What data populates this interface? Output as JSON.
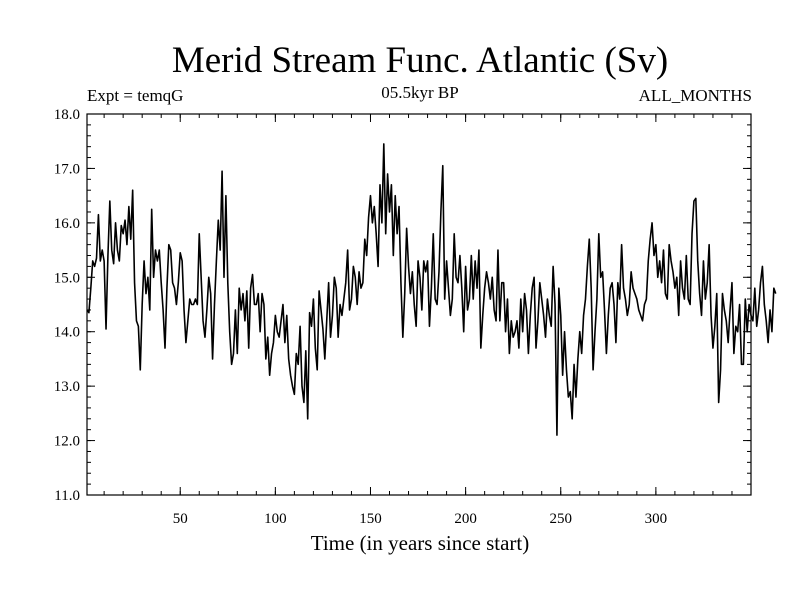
{
  "chart_data": {
    "type": "line",
    "title": "Merid Stream Func. Atlantic (Sv)",
    "subtitle_left": "Expt = temqG",
    "subtitle_center": "05.5kyr BP",
    "subtitle_right": "ALL_MONTHS",
    "xlabel": "Time (in years since start)",
    "ylabel": "",
    "xlim": [
      1,
      350
    ],
    "ylim": [
      11.0,
      18.0
    ],
    "x_ticks": [
      50,
      100,
      150,
      200,
      250,
      300
    ],
    "x_tick_labels": [
      "50",
      "100",
      "150",
      "200",
      "250",
      "300"
    ],
    "y_ticks": [
      11.0,
      12.0,
      13.0,
      14.0,
      15.0,
      16.0,
      17.0,
      18.0
    ],
    "y_tick_labels": [
      "11.0",
      "12.0",
      "13.0",
      "14.0",
      "15.0",
      "16.0",
      "17.0",
      "18.0"
    ],
    "grid": false,
    "series": [
      {
        "name": "Merid Stream Func. Atlantic",
        "color": "#000000",
        "x_start": 1,
        "x_step": 1,
        "values": [
          14.4,
          14.35,
          14.8,
          15.3,
          15.2,
          15.35,
          16.15,
          15.3,
          15.5,
          15.3,
          14.05,
          15.4,
          16.4,
          15.5,
          15.25,
          16.0,
          15.5,
          15.3,
          15.95,
          15.8,
          16.05,
          15.6,
          16.3,
          15.7,
          16.6,
          14.9,
          14.2,
          14.1,
          13.3,
          14.5,
          15.3,
          14.7,
          15.0,
          14.4,
          16.25,
          15.0,
          15.5,
          15.3,
          15.5,
          14.9,
          14.4,
          13.7,
          14.8,
          15.6,
          15.5,
          14.9,
          14.8,
          14.5,
          14.9,
          15.45,
          15.3,
          14.4,
          13.8,
          14.2,
          14.6,
          14.5,
          14.5,
          14.6,
          14.5,
          15.8,
          15.0,
          14.2,
          13.9,
          14.4,
          15.0,
          14.7,
          13.5,
          14.5,
          15.3,
          16.05,
          15.5,
          16.95,
          15.0,
          16.5,
          14.9,
          14.0,
          13.4,
          13.6,
          14.4,
          13.6,
          14.8,
          14.4,
          14.7,
          14.2,
          14.75,
          13.7,
          14.8,
          15.05,
          14.5,
          14.5,
          14.7,
          14.0,
          14.7,
          14.5,
          13.5,
          13.9,
          13.2,
          13.6,
          13.8,
          14.3,
          14.0,
          13.9,
          14.2,
          14.5,
          13.8,
          14.3,
          13.5,
          13.2,
          13.0,
          12.85,
          13.6,
          13.4,
          14.1,
          13.0,
          12.7,
          13.65,
          12.4,
          14.35,
          14.1,
          14.6,
          13.7,
          13.3,
          14.75,
          14.4,
          14.05,
          13.5,
          14.2,
          14.9,
          13.9,
          14.3,
          15.0,
          14.8,
          13.9,
          14.5,
          14.3,
          14.6,
          14.9,
          15.5,
          14.4,
          14.6,
          15.2,
          15.0,
          14.5,
          15.1,
          14.8,
          14.9,
          15.7,
          15.4,
          16.1,
          16.5,
          16.0,
          16.3,
          15.8,
          15.2,
          16.7,
          16.0,
          17.45,
          15.8,
          16.9,
          16.2,
          16.7,
          15.4,
          16.5,
          15.8,
          16.3,
          14.9,
          13.9,
          14.7,
          15.9,
          15.2,
          14.7,
          15.1,
          14.5,
          14.1,
          15.3,
          15.0,
          14.4,
          15.3,
          15.1,
          15.3,
          14.1,
          14.8,
          15.8,
          14.6,
          14.5,
          15.1,
          16.2,
          17.05,
          14.6,
          15.3,
          14.8,
          14.3,
          14.6,
          15.8,
          15.0,
          14.9,
          15.4,
          14.8,
          14.0,
          15.2,
          14.4,
          14.6,
          15.4,
          14.6,
          15.3,
          14.8,
          15.5,
          13.7,
          14.3,
          14.8,
          15.1,
          14.9,
          14.6,
          15.0,
          14.4,
          14.2,
          15.5,
          14.2,
          14.9,
          14.9,
          14.0,
          14.6,
          13.6,
          14.2,
          13.9,
          14.0,
          14.2,
          13.7,
          14.6,
          14.0,
          14.7,
          14.4,
          13.6,
          14.3,
          14.8,
          15.0,
          13.7,
          14.2,
          14.9,
          14.6,
          14.3,
          13.9,
          14.6,
          14.3,
          14.1,
          15.2,
          14.5,
          12.1,
          14.8,
          14.3,
          13.2,
          14.0,
          13.3,
          12.8,
          12.9,
          12.4,
          13.4,
          12.8,
          13.5,
          14.0,
          13.6,
          14.3,
          14.6,
          15.2,
          15.7,
          14.8,
          13.3,
          14.0,
          14.6,
          15.8,
          15.0,
          15.1,
          14.4,
          13.6,
          14.3,
          14.8,
          14.9,
          14.5,
          13.8,
          14.9,
          14.6,
          15.6,
          14.8,
          14.6,
          14.3,
          14.5,
          15.1,
          14.8,
          14.7,
          14.6,
          14.4,
          14.3,
          14.2,
          14.5,
          14.6,
          15.3,
          15.7,
          16.0,
          15.4,
          15.6,
          15.0,
          15.3,
          14.9,
          15.5,
          14.7,
          14.6,
          15.6,
          15.3,
          15.1,
          14.8,
          15.0,
          14.3,
          15.3,
          14.8,
          14.6,
          15.4,
          14.6,
          14.5,
          15.8,
          16.4,
          16.45,
          15.3,
          14.7,
          14.3,
          15.3,
          14.6,
          14.9,
          15.6,
          14.3,
          13.7,
          14.1,
          14.7,
          12.7,
          13.3,
          14.7,
          14.4,
          14.2,
          13.8,
          14.4,
          14.9,
          13.6,
          14.1,
          14.0,
          14.5,
          13.4,
          13.4,
          14.6,
          14.0,
          14.5,
          14.3,
          14.2,
          14.8,
          14.1,
          14.4,
          14.9,
          15.2,
          14.5,
          14.2,
          13.8,
          14.4,
          14.0,
          14.8,
          14.7
        ]
      }
    ]
  }
}
